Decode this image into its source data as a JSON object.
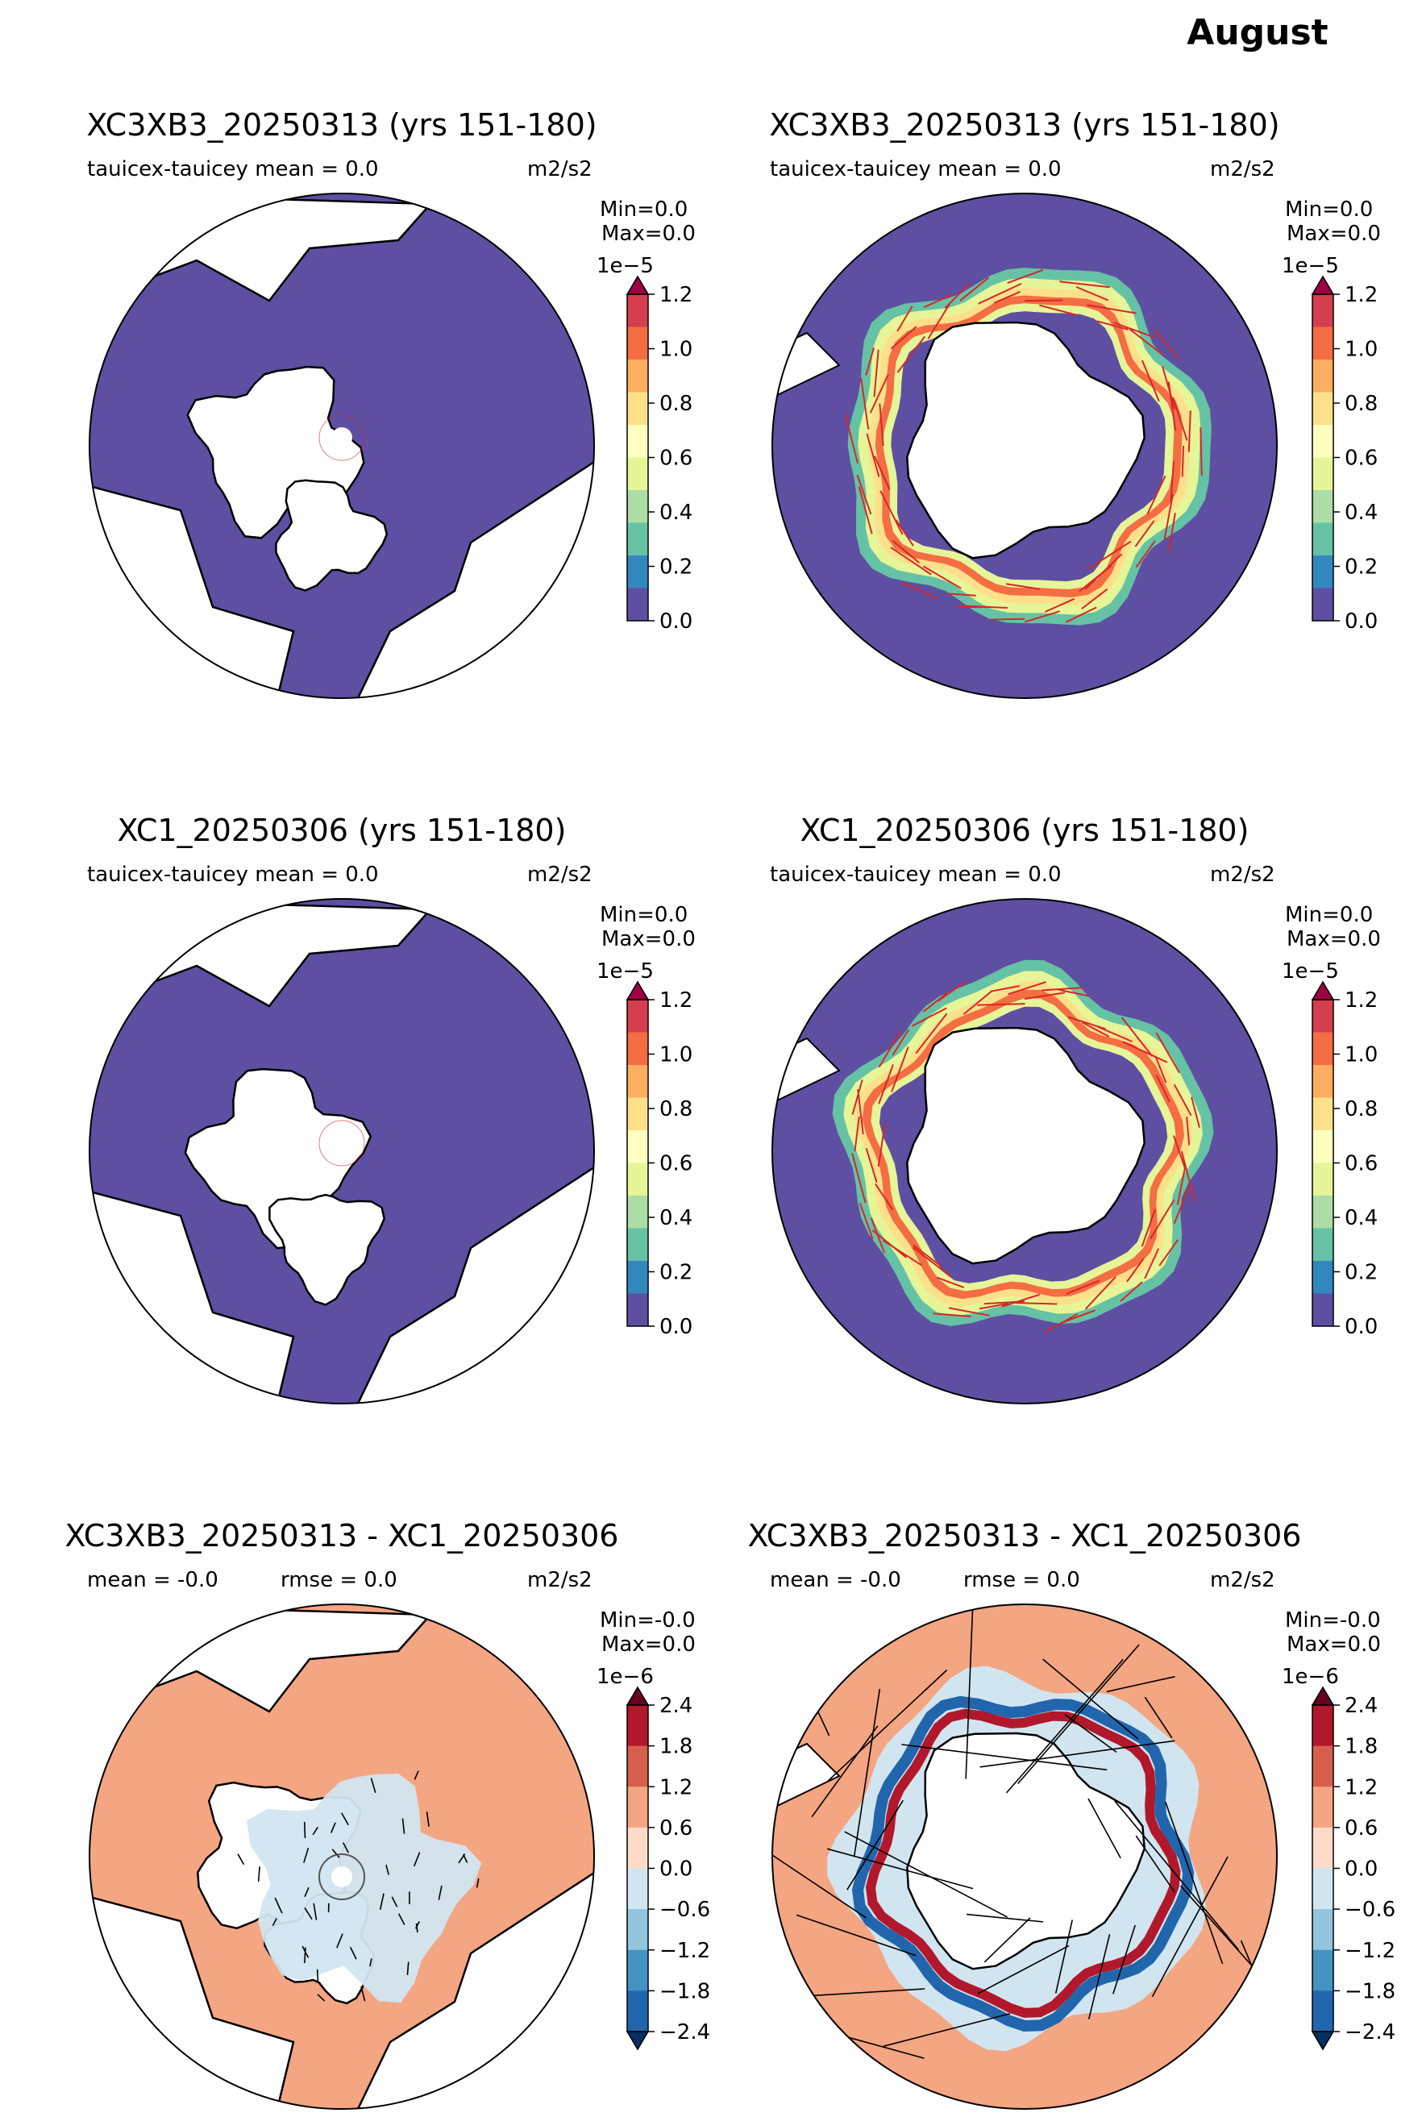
{
  "figure_title": "August",
  "colors": {
    "ocean_zero": "#5e4fa2",
    "diff_ocean": "#f4a582",
    "vector_main": "#d62728",
    "vector_diff": "#000000",
    "seq_cmap": [
      "#5e4fa2",
      "#3288bd",
      "#66c2a5",
      "#abdda4",
      "#e6f598",
      "#ffffbf",
      "#fee08b",
      "#fdae61",
      "#f46d43",
      "#d53e4f",
      "#9e0142"
    ],
    "div_cmap": [
      "#053061",
      "#2166ac",
      "#4393c3",
      "#92c5de",
      "#d1e5f0",
      "#fddbc7",
      "#f4a582",
      "#d6604d",
      "#b2182b",
      "#67001f"
    ]
  },
  "chart_data": [
    {
      "type": "heatmap",
      "panel": "row1-left",
      "hemisphere": "north",
      "title": "XC3XB3_20250313 (yrs 151-180)",
      "subtitle_left": "tauicex-tauicey  mean = 0.0",
      "units": "m2/s2",
      "min_text": "Min=0.0",
      "max_text": "Max=0.0",
      "colorbar": {
        "scale_label": "1e−5",
        "ticks": [
          "0.0",
          "0.2",
          "0.4",
          "0.6",
          "0.8",
          "1.0",
          "1.2"
        ],
        "range": [
          0,
          1.2
        ],
        "extend": "max"
      },
      "field_range": [
        0,
        0
      ],
      "vectors": "none visible"
    },
    {
      "type": "heatmap",
      "panel": "row1-right",
      "hemisphere": "south",
      "title": "XC3XB3_20250313 (yrs 151-180)",
      "subtitle_left": "tauicex-tauicey  mean = 0.0",
      "units": "m2/s2",
      "min_text": "Min=0.0",
      "max_text": "Max=0.0",
      "colorbar": {
        "scale_label": "1e−5",
        "ticks": [
          "0.0",
          "0.2",
          "0.4",
          "0.6",
          "0.8",
          "1.0",
          "1.2"
        ],
        "range": [
          0,
          1.2
        ],
        "extend": "max"
      },
      "field_range": [
        0,
        1.2
      ],
      "vectors": "red stress vectors along sea-ice edge"
    },
    {
      "type": "heatmap",
      "panel": "row2-left",
      "hemisphere": "north",
      "title": "XC1_20250306 (yrs 151-180)",
      "subtitle_left": "tauicex-tauicey  mean = 0.0",
      "units": "m2/s2",
      "min_text": "Min=0.0",
      "max_text": "Max=0.0",
      "colorbar": {
        "scale_label": "1e−5",
        "ticks": [
          "0.0",
          "0.2",
          "0.4",
          "0.6",
          "0.8",
          "1.0",
          "1.2"
        ],
        "range": [
          0,
          1.2
        ],
        "extend": "max"
      },
      "field_range": [
        0,
        0
      ],
      "vectors": "none visible"
    },
    {
      "type": "heatmap",
      "panel": "row2-right",
      "hemisphere": "south",
      "title": "XC1_20250306 (yrs 151-180)",
      "subtitle_left": "tauicex-tauicey  mean = 0.0",
      "units": "m2/s2",
      "min_text": "Min=0.0",
      "max_text": "Max=0.0",
      "colorbar": {
        "scale_label": "1e−5",
        "ticks": [
          "0.0",
          "0.2",
          "0.4",
          "0.6",
          "0.8",
          "1.0",
          "1.2"
        ],
        "range": [
          0,
          1.2
        ],
        "extend": "max"
      },
      "field_range": [
        0,
        1.2
      ],
      "vectors": "red stress vectors along sea-ice edge"
    },
    {
      "type": "heatmap",
      "panel": "row3-left",
      "hemisphere": "north",
      "title": "XC3XB3_20250313 - XC1_20250306",
      "subtitle_left": "mean = -0.0",
      "subtitle_mid": "rmse = 0.0",
      "units": "m2/s2",
      "min_text": "Min=-0.0",
      "max_text": "Max=0.0",
      "colorbar": {
        "scale_label": "1e−6",
        "ticks": [
          "−2.4",
          "−1.8",
          "−1.2",
          "−0.6",
          "0.0",
          "0.6",
          "1.2",
          "1.8",
          "2.4"
        ],
        "range": [
          -2.4,
          2.4
        ],
        "extend": "both"
      },
      "field_range": [
        -0.6,
        0.6
      ],
      "vectors": "black difference vectors"
    },
    {
      "type": "heatmap",
      "panel": "row3-right",
      "hemisphere": "south",
      "title": "XC3XB3_20250313 - XC1_20250306",
      "subtitle_left": "mean = -0.0",
      "subtitle_mid": "rmse = 0.0",
      "units": "m2/s2",
      "min_text": "Min=-0.0",
      "max_text": "Max=0.0",
      "colorbar": {
        "scale_label": "1e−6",
        "ticks": [
          "−2.4",
          "−1.8",
          "−1.2",
          "−0.6",
          "0.0",
          "0.6",
          "1.2",
          "1.8",
          "2.4"
        ],
        "range": [
          -2.4,
          2.4
        ],
        "extend": "both"
      },
      "field_range": [
        -2.4,
        2.4
      ],
      "vectors": "black difference vectors"
    }
  ]
}
